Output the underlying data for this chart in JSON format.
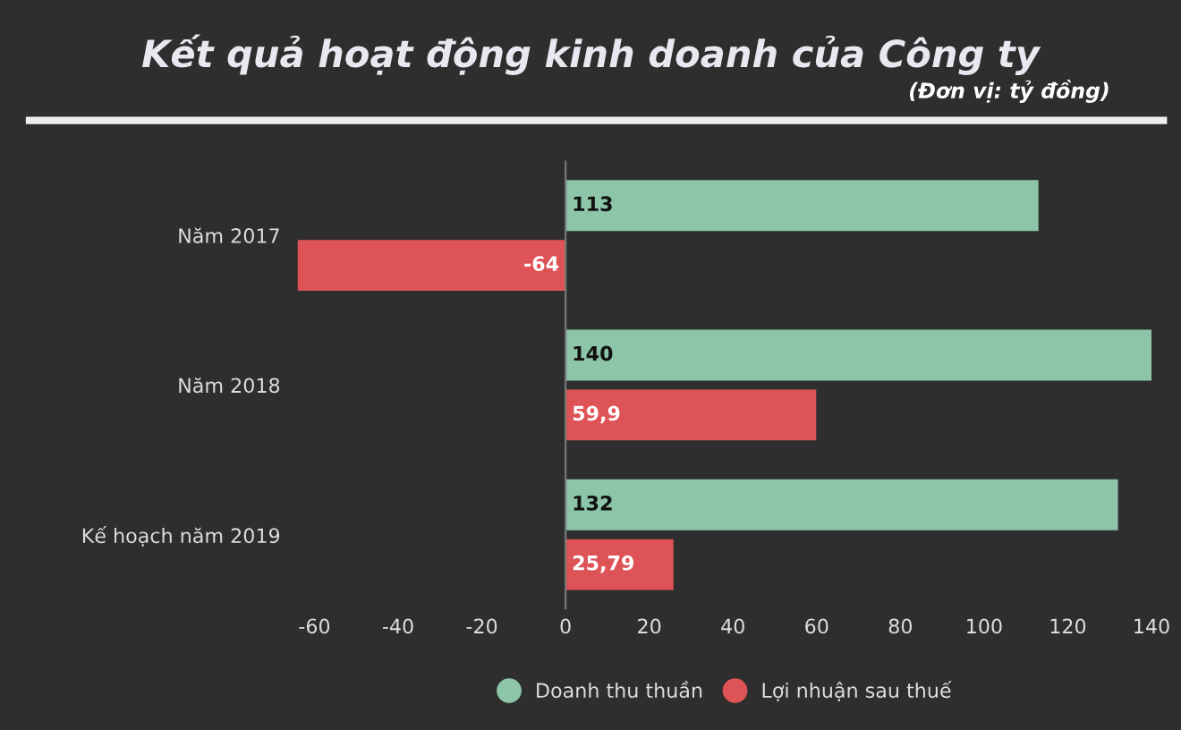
{
  "chart_data": {
    "type": "bar",
    "orientation": "horizontal",
    "title": "Kết quả hoạt động kinh doanh của Công ty",
    "subtitle": "(Đơn vị: tỷ đồng)",
    "categories": [
      "Năm 2017",
      "Năm 2018",
      "Kế hoạch năm 2019"
    ],
    "series": [
      {
        "name": "Doanh thu thuần",
        "color": "#8cc5a8",
        "values": [
          113,
          140,
          132
        ],
        "value_labels": [
          "113",
          "140",
          "132"
        ]
      },
      {
        "name": "Lợi nhuận sau thuế",
        "color": "#de5356",
        "values": [
          -64,
          59.9,
          25.79
        ],
        "value_labels": [
          "-64",
          "59,9",
          "25,79"
        ]
      }
    ],
    "xlim": [
      -66,
      140
    ],
    "ref_lines": [
      {
        "axis": "x",
        "value": 0,
        "color": "#777777"
      }
    ],
    "xticks": [
      -60,
      -40,
      -20,
      0,
      20,
      40,
      60,
      80,
      100,
      120,
      140
    ],
    "grid": false,
    "legend": "bottom"
  }
}
